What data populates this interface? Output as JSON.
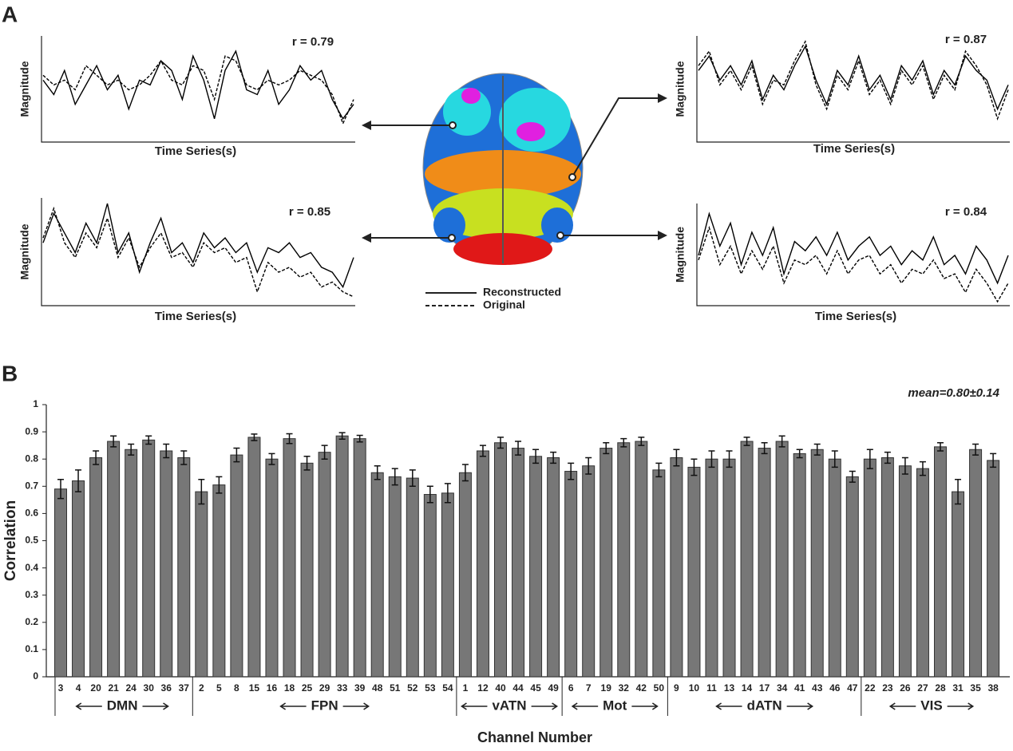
{
  "panel_labels": [
    "A",
    "B"
  ],
  "chart_data": [
    {
      "type": "line",
      "annotation": "r = 0.79",
      "ylabel": "Magnitude",
      "xlabel": "Time Series(s)",
      "ylim": [
        0,
        1
      ],
      "series": [
        {
          "name": "Reconstructed",
          "color": "#000000",
          "values": [
            0.6,
            0.45,
            0.7,
            0.35,
            0.55,
            0.75,
            0.5,
            0.65,
            0.3,
            0.6,
            0.55,
            0.8,
            0.7,
            0.4,
            0.85,
            0.6,
            0.2,
            0.7,
            0.9,
            0.5,
            0.45,
            0.7,
            0.35,
            0.5,
            0.75,
            0.6,
            0.7,
            0.4,
            0.2,
            0.35
          ]
        },
        {
          "name": "Original",
          "color": "#000000",
          "values": [
            0.65,
            0.55,
            0.6,
            0.5,
            0.75,
            0.65,
            0.55,
            0.6,
            0.5,
            0.55,
            0.65,
            0.8,
            0.6,
            0.55,
            0.75,
            0.7,
            0.4,
            0.85,
            0.8,
            0.55,
            0.5,
            0.6,
            0.55,
            0.6,
            0.7,
            0.65,
            0.6,
            0.45,
            0.15,
            0.4
          ]
        }
      ]
    },
    {
      "type": "line",
      "annotation": "r = 0.87",
      "ylabel": "Magnitude",
      "xlabel": "Time Series(s)",
      "ylim": [
        0,
        1
      ],
      "series": [
        {
          "name": "Reconstructed",
          "color": "#000000",
          "values": [
            0.7,
            0.85,
            0.6,
            0.75,
            0.55,
            0.8,
            0.4,
            0.65,
            0.5,
            0.75,
            0.95,
            0.6,
            0.35,
            0.7,
            0.55,
            0.85,
            0.5,
            0.65,
            0.4,
            0.75,
            0.6,
            0.8,
            0.45,
            0.7,
            0.55,
            0.85,
            0.7,
            0.6,
            0.3,
            0.55
          ]
        },
        {
          "name": "Original",
          "color": "#000000",
          "values": [
            0.75,
            0.9,
            0.55,
            0.7,
            0.5,
            0.75,
            0.35,
            0.6,
            0.55,
            0.8,
            1.0,
            0.55,
            0.3,
            0.65,
            0.5,
            0.8,
            0.45,
            0.6,
            0.35,
            0.7,
            0.55,
            0.75,
            0.4,
            0.65,
            0.5,
            0.9,
            0.75,
            0.55,
            0.2,
            0.5
          ]
        }
      ]
    },
    {
      "type": "line",
      "annotation": "r = 0.85",
      "ylabel": "Magnitude",
      "xlabel": "Time Series(s)",
      "ylim": [
        0,
        1
      ],
      "series": [
        {
          "name": "Reconstructed",
          "color": "#000000",
          "values": [
            0.6,
            0.9,
            0.7,
            0.5,
            0.8,
            0.6,
            1.0,
            0.5,
            0.7,
            0.3,
            0.6,
            0.85,
            0.5,
            0.6,
            0.4,
            0.7,
            0.55,
            0.65,
            0.5,
            0.6,
            0.3,
            0.55,
            0.5,
            0.6,
            0.45,
            0.5,
            0.35,
            0.3,
            0.15,
            0.45
          ]
        },
        {
          "name": "Original",
          "color": "#000000",
          "values": [
            0.65,
            0.95,
            0.6,
            0.45,
            0.7,
            0.55,
            0.85,
            0.45,
            0.65,
            0.35,
            0.55,
            0.7,
            0.45,
            0.5,
            0.35,
            0.6,
            0.5,
            0.55,
            0.4,
            0.45,
            0.1,
            0.4,
            0.3,
            0.35,
            0.25,
            0.3,
            0.15,
            0.2,
            0.1,
            0.05
          ]
        }
      ]
    },
    {
      "type": "line",
      "annotation": "r = 0.84",
      "ylabel": "Magnitude",
      "xlabel": "Time Series(s)",
      "ylim": [
        0,
        1
      ],
      "series": [
        {
          "name": "Reconstructed",
          "color": "#000000",
          "values": [
            0.5,
            0.95,
            0.6,
            0.85,
            0.4,
            0.75,
            0.5,
            0.8,
            0.3,
            0.65,
            0.55,
            0.7,
            0.5,
            0.75,
            0.45,
            0.6,
            0.7,
            0.5,
            0.6,
            0.4,
            0.55,
            0.45,
            0.7,
            0.4,
            0.5,
            0.3,
            0.6,
            0.45,
            0.2,
            0.5
          ]
        },
        {
          "name": "Original",
          "color": "#000000",
          "values": [
            0.45,
            0.8,
            0.4,
            0.6,
            0.3,
            0.55,
            0.35,
            0.6,
            0.2,
            0.45,
            0.4,
            0.5,
            0.3,
            0.55,
            0.3,
            0.45,
            0.5,
            0.3,
            0.4,
            0.2,
            0.35,
            0.3,
            0.45,
            0.25,
            0.3,
            0.1,
            0.35,
            0.2,
            0.0,
            0.2
          ]
        }
      ]
    },
    {
      "type": "bar",
      "annotation": "mean=0.80±0.14",
      "ylabel": "Correlation",
      "xlabel": "Channel Number",
      "color": "#777777",
      "ylim": [
        0,
        1
      ],
      "yticks": [
        0,
        0.1,
        0.2,
        0.3,
        0.4,
        0.5,
        0.6,
        0.7,
        0.8,
        0.9,
        1
      ],
      "groups": [
        {
          "name": "DMN",
          "categories": [
            "3",
            "4",
            "20",
            "21",
            "24",
            "30",
            "36",
            "37"
          ],
          "values": [
            0.69,
            0.72,
            0.805,
            0.865,
            0.835,
            0.87,
            0.83,
            0.805
          ],
          "errors": [
            0.035,
            0.04,
            0.025,
            0.02,
            0.02,
            0.015,
            0.025,
            0.025
          ]
        },
        {
          "name": "FPN",
          "categories": [
            "2",
            "5",
            "8",
            "15",
            "16",
            "18",
            "25",
            "29",
            "33",
            "39",
            "48",
            "51",
            "52",
            "53",
            "54"
          ],
          "values": [
            0.68,
            0.705,
            0.815,
            0.88,
            0.8,
            0.875,
            0.785,
            0.825,
            0.885,
            0.875,
            0.75,
            0.735,
            0.73,
            0.67,
            0.675
          ],
          "errors": [
            0.045,
            0.03,
            0.025,
            0.012,
            0.02,
            0.018,
            0.025,
            0.025,
            0.012,
            0.012,
            0.025,
            0.03,
            0.03,
            0.03,
            0.035
          ]
        },
        {
          "name": "vATN",
          "categories": [
            "1",
            "12",
            "40",
            "44",
            "45",
            "49"
          ],
          "values": [
            0.75,
            0.83,
            0.86,
            0.84,
            0.81,
            0.805
          ],
          "errors": [
            0.03,
            0.02,
            0.02,
            0.025,
            0.025,
            0.02
          ]
        },
        {
          "name": "Mot",
          "categories": [
            "6",
            "7",
            "19",
            "32",
            "42",
            "50"
          ],
          "values": [
            0.755,
            0.775,
            0.84,
            0.86,
            0.865,
            0.76
          ],
          "errors": [
            0.03,
            0.03,
            0.02,
            0.015,
            0.015,
            0.025
          ]
        },
        {
          "name": "dATN",
          "categories": [
            "9",
            "10",
            "11",
            "13",
            "14",
            "17",
            "34",
            "41",
            "43",
            "46",
            "47"
          ],
          "values": [
            0.805,
            0.77,
            0.8,
            0.8,
            0.865,
            0.84,
            0.865,
            0.82,
            0.835,
            0.8,
            0.735
          ],
          "errors": [
            0.03,
            0.03,
            0.03,
            0.03,
            0.015,
            0.02,
            0.02,
            0.015,
            0.02,
            0.03,
            0.02
          ]
        },
        {
          "name": "VIS",
          "categories": [
            "22",
            "23",
            "26",
            "27",
            "28",
            "31",
            "35",
            "38"
          ],
          "values": [
            0.8,
            0.805,
            0.775,
            0.765,
            0.845,
            0.68,
            0.835,
            0.795
          ],
          "errors": [
            0.035,
            0.02,
            0.03,
            0.025,
            0.015,
            0.045,
            0.02,
            0.025
          ]
        }
      ]
    }
  ]
}
